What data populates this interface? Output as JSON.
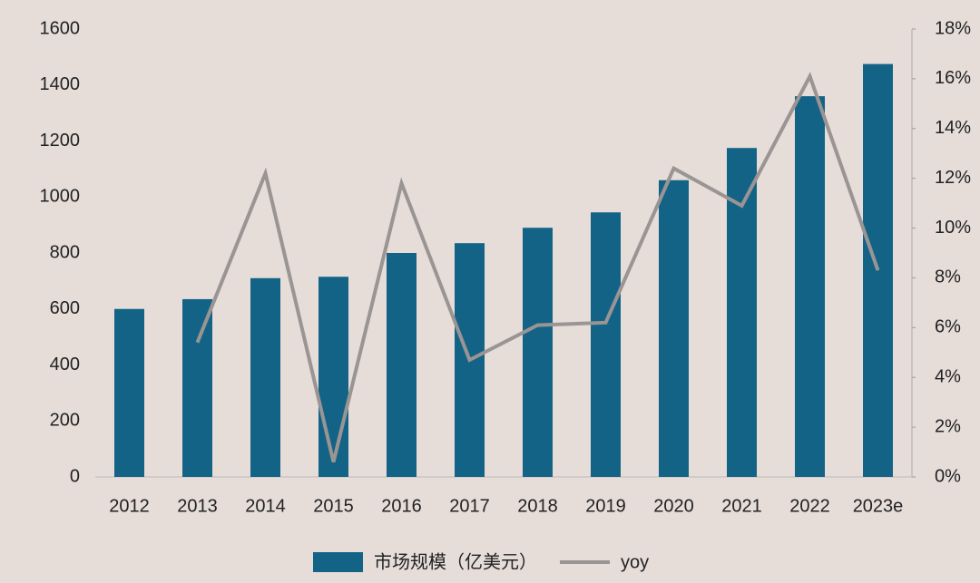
{
  "chart_data": {
    "type": "bar_line",
    "categories": [
      "2012",
      "2013",
      "2014",
      "2015",
      "2016",
      "2017",
      "2018",
      "2019",
      "2020",
      "2021",
      "2022",
      "2023e"
    ],
    "series": [
      {
        "name": "市场规模（亿美元）",
        "type": "bar",
        "color": "#136387",
        "values": [
          600,
          635,
          710,
          715,
          800,
          835,
          890,
          945,
          1060,
          1175,
          1360,
          1475
        ]
      },
      {
        "name": "yoy",
        "type": "line",
        "axis": "y2",
        "color": "#9a9493",
        "values": [
          null,
          5.4,
          12.2,
          0.6,
          11.8,
          4.7,
          6.1,
          6.2,
          12.4,
          10.9,
          16.1,
          8.3
        ]
      }
    ],
    "ylim": [
      0,
      1600
    ],
    "yticks": [
      0,
      200,
      400,
      600,
      800,
      1000,
      1200,
      1400,
      1600
    ],
    "y2lim": [
      0,
      18
    ],
    "y2ticks": [
      {
        "value": 0,
        "label": "0%"
      },
      {
        "value": 2,
        "label": "2%"
      },
      {
        "value": 4,
        "label": "4%"
      },
      {
        "value": 6,
        "label": "6%"
      },
      {
        "value": 8,
        "label": "8%"
      },
      {
        "value": 10,
        "label": "10%"
      },
      {
        "value": 12,
        "label": "12%"
      },
      {
        "value": 14,
        "label": "14%"
      },
      {
        "value": 16,
        "label": "16%"
      },
      {
        "value": 18,
        "label": "18%"
      }
    ],
    "legend": "bottom"
  }
}
